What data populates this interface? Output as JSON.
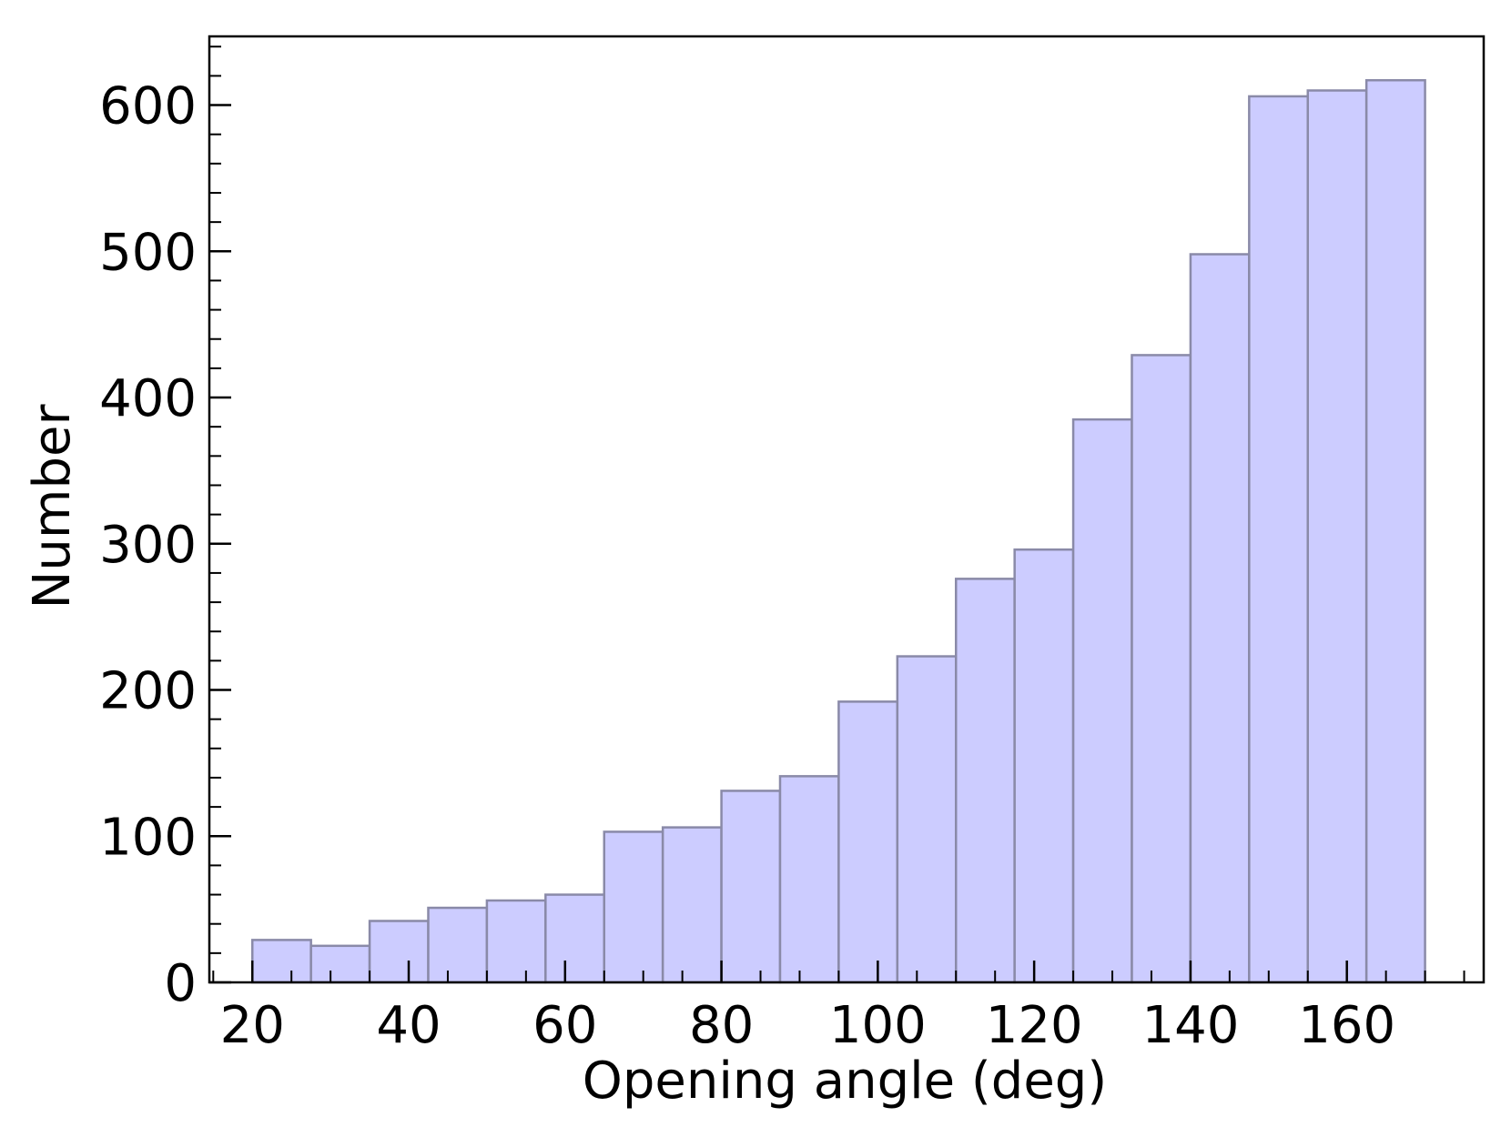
{
  "chart_data": {
    "type": "bar",
    "title": "",
    "xlabel": "Opening angle (deg)",
    "ylabel": "Number",
    "xlim": [
      14.5,
      177.5
    ],
    "ylim": [
      0,
      647
    ],
    "x_ticks": [
      "20",
      "40",
      "60",
      "80",
      "100",
      "120",
      "140",
      "160"
    ],
    "y_ticks": [
      "0",
      "100",
      "200",
      "300",
      "400",
      "500",
      "600"
    ],
    "x_tick_values": [
      20,
      40,
      60,
      80,
      100,
      120,
      140,
      160
    ],
    "y_tick_values": [
      0,
      100,
      200,
      300,
      400,
      500,
      600
    ],
    "bin_edges": [
      20.0,
      27.5,
      35.0,
      42.5,
      50.0,
      57.5,
      65.0,
      72.5,
      80.0,
      87.5,
      95.0,
      102.5,
      110.0,
      117.5,
      125.0,
      132.5,
      140.0,
      147.5,
      155.0,
      162.5,
      170.0
    ],
    "values": [
      29,
      25,
      42,
      51,
      56,
      60,
      103,
      106,
      131,
      141,
      192,
      223,
      276,
      296,
      385,
      429,
      498,
      606,
      610,
      617
    ],
    "bar_color": "#ccccff",
    "bar_edge_color": "#8a8aa8",
    "grid": false
  }
}
